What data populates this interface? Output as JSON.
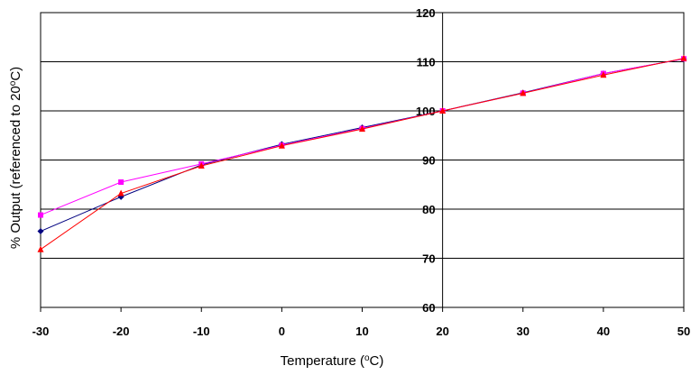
{
  "chart_data": {
    "type": "line",
    "xlabel": "Temperature (oC)",
    "ylabel": "% Output (referenced to 20oC)",
    "xlim": [
      -30,
      50
    ],
    "ylim": [
      60,
      120
    ],
    "x_ticks": [
      -30,
      -20,
      -10,
      0,
      10,
      20,
      30,
      40,
      50
    ],
    "y_ticks": [
      60,
      70,
      80,
      90,
      100,
      110,
      120
    ],
    "grid": "horizontal",
    "legend": "none",
    "y_axis_position": "x=20",
    "x": [
      -30,
      -20,
      -10,
      0,
      10,
      20,
      30,
      40,
      50
    ],
    "series": [
      {
        "color": "#000080",
        "marker": "diamond",
        "values": [
          75.5,
          82.5,
          89.0,
          93.2,
          96.6,
          100,
          103.7,
          107.6,
          110.6
        ]
      },
      {
        "color": "#ff00ff",
        "marker": "square",
        "values": [
          78.8,
          85.5,
          89.2,
          93.0,
          96.4,
          100,
          103.6,
          107.6,
          110.6
        ]
      },
      {
        "color": "#ff0000",
        "marker": "triangle",
        "values": [
          71.8,
          83.2,
          88.8,
          92.9,
          96.3,
          100,
          103.6,
          107.3,
          110.7
        ]
      }
    ]
  }
}
